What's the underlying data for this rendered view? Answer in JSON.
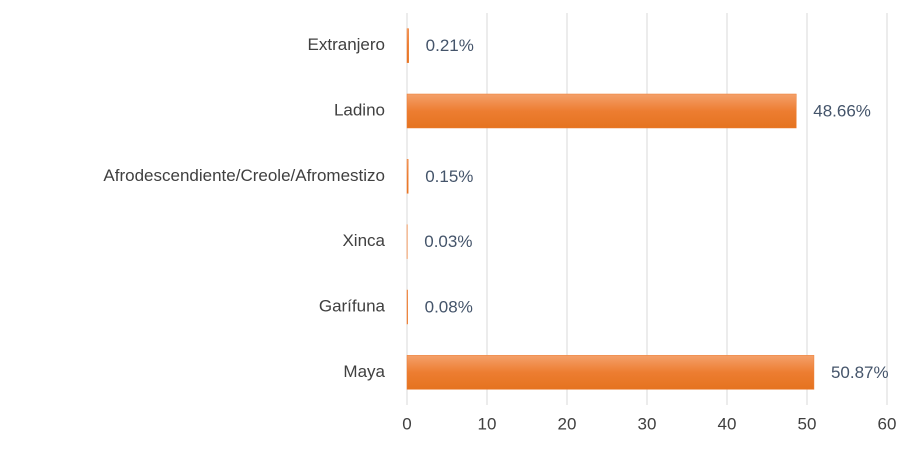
{
  "chart_data": {
    "type": "bar",
    "orientation": "horizontal",
    "categories": [
      "Extranjero",
      "Ladino",
      "Afrodescendiente/Creole/Afromestizo",
      "Xinca",
      "Garífuna",
      "Maya"
    ],
    "values": [
      0.21,
      48.66,
      0.15,
      0.03,
      0.08,
      50.87
    ],
    "value_labels": [
      "0.21%",
      "48.66%",
      "0.15%",
      "0.03%",
      "0.08%",
      "50.87%"
    ],
    "color": "#ed7d31",
    "xlim": [
      0,
      60
    ],
    "xticks": [
      0,
      10,
      20,
      30,
      40,
      50,
      60
    ],
    "grid": true
  }
}
